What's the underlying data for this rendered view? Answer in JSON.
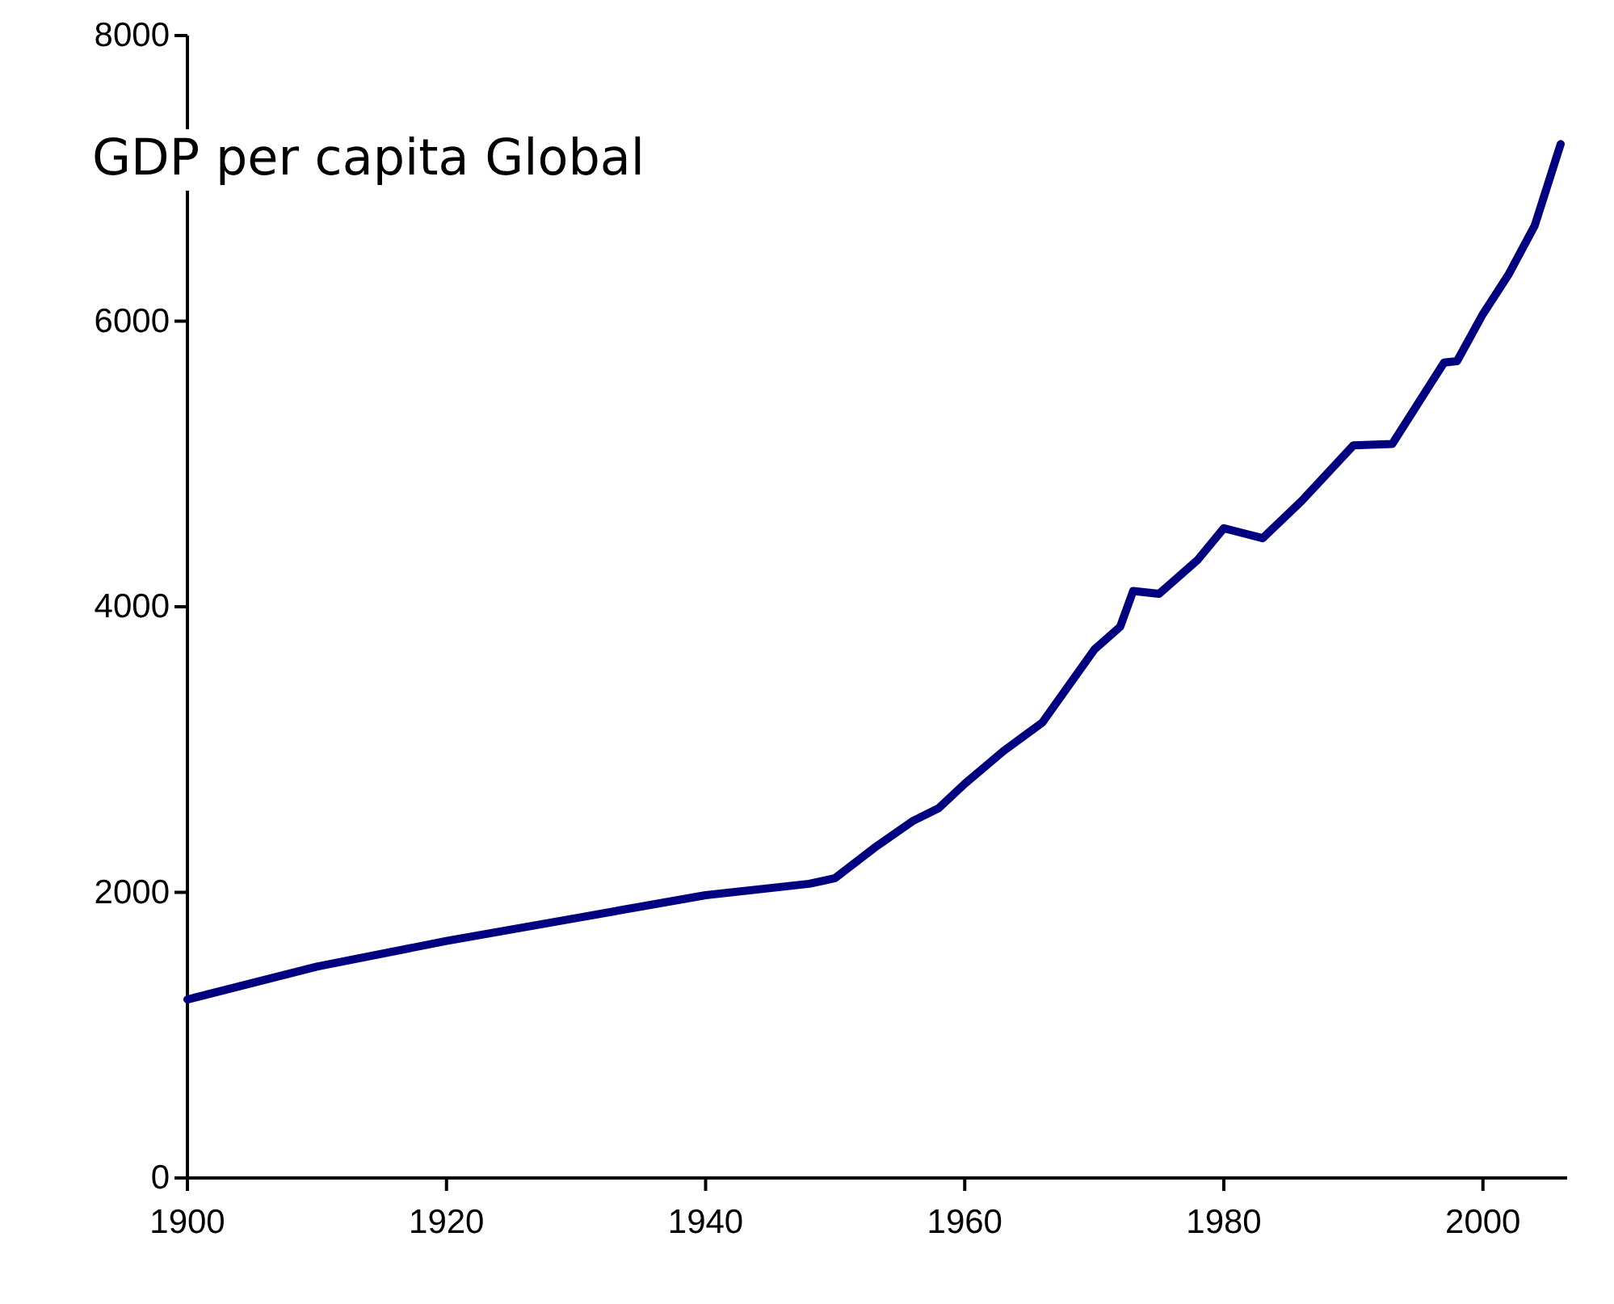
{
  "chart_data": {
    "type": "line",
    "title": "GDP per capita Global",
    "x": [
      1900,
      1910,
      1920,
      1930,
      1940,
      1948,
      1950,
      1953,
      1956,
      1958,
      1960,
      1963,
      1966,
      1970,
      1972,
      1973,
      1975,
      1978,
      1980,
      1983,
      1986,
      1990,
      1993,
      1997,
      1998,
      2000,
      2002,
      2004,
      2006
    ],
    "series": [
      {
        "color": "#000080",
        "values": [
          1250,
          1480,
          1660,
          1820,
          1980,
          2060,
          2100,
          2310,
          2500,
          2590,
          2760,
          2990,
          3190,
          3700,
          3860,
          4110,
          4090,
          4330,
          4550,
          4480,
          4740,
          5130,
          5140,
          5710,
          5720,
          6050,
          6330,
          6670,
          7240
        ]
      }
    ],
    "xlim": [
      1900,
      2006.5
    ],
    "xticks": [
      1900,
      1920,
      1940,
      1960,
      1980,
      2000
    ],
    "ylim": [
      0,
      8000
    ],
    "yticks": [
      0,
      2000,
      4000,
      6000,
      8000
    ],
    "grid": false,
    "marker": "none",
    "line_style": "solid"
  }
}
